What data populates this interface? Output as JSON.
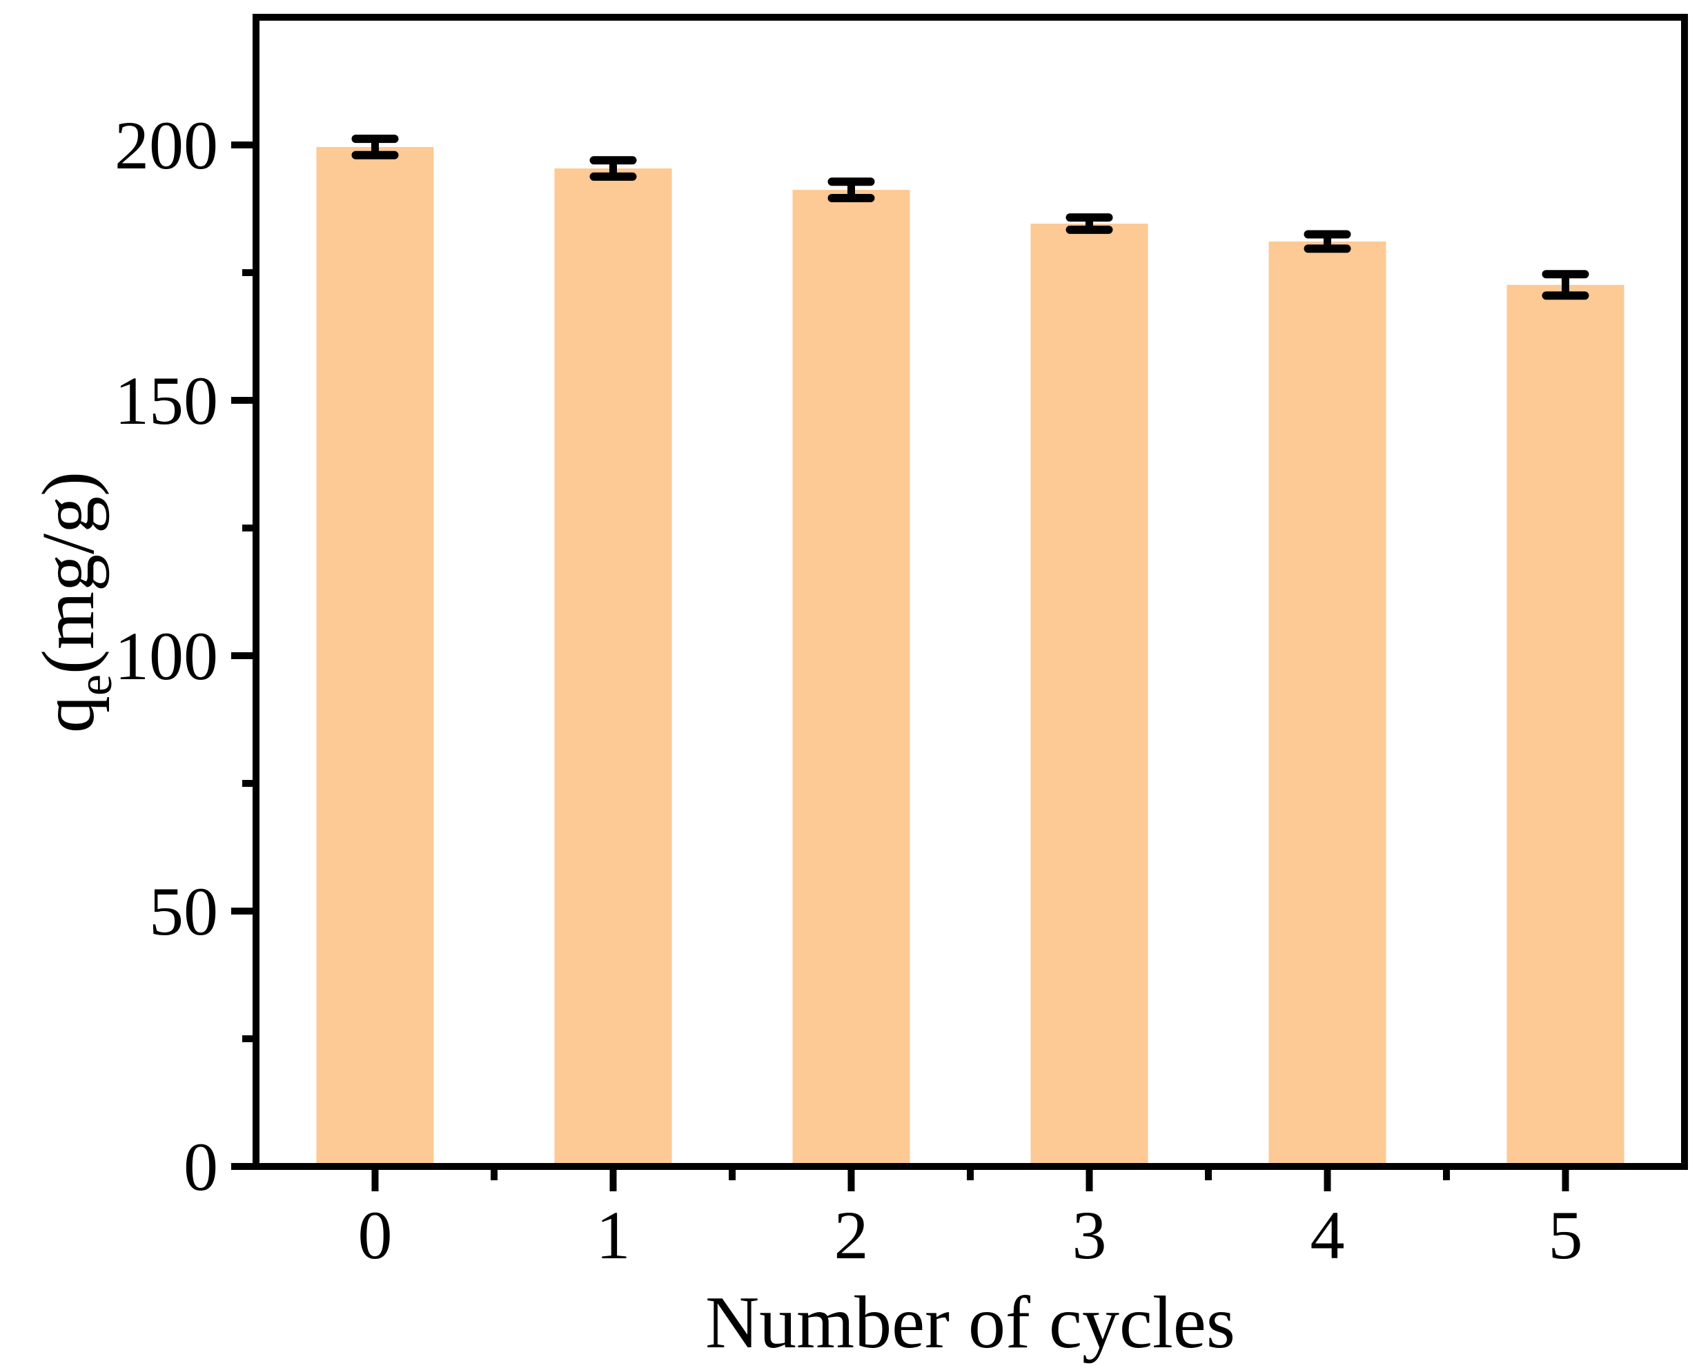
{
  "chart_data": {
    "type": "bar",
    "title": "",
    "xlabel": "Number of cycles",
    "ylabel": {
      "base": "q",
      "sub": "e",
      "unit": "(mg/g)",
      "plain": "qe(mg/g)"
    },
    "categories": [
      "0",
      "1",
      "2",
      "3",
      "4",
      "5"
    ],
    "series": [
      {
        "name": "qe",
        "values": [
          199.6,
          195.4,
          191.2,
          184.6,
          181.1,
          172.6
        ],
        "errors": [
          1.6,
          1.6,
          1.6,
          1.2,
          1.4,
          2.1
        ]
      }
    ],
    "ylim": [
      0,
      225
    ],
    "yticks_major": [
      0,
      50,
      100,
      150,
      200
    ],
    "yticks_minor": [
      25,
      75,
      125,
      175
    ],
    "xticks_minor_between_categories": true,
    "bar_color": "#fdc994",
    "axis_color": "#000000",
    "error_bar_color": "#000000",
    "background_color": "#ffffff",
    "grid": false,
    "legend": null,
    "ticks_direction": "out",
    "frame": "box"
  }
}
